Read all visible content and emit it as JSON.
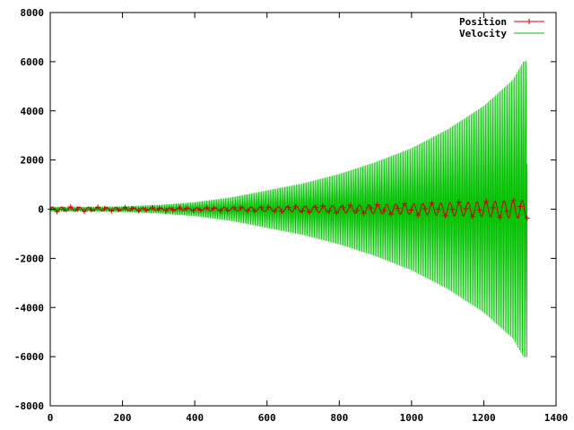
{
  "chart_data": {
    "type": "line",
    "title": "",
    "xlabel": "",
    "ylabel": "",
    "xlim": [
      0,
      1400
    ],
    "ylim": [
      -8000,
      8000
    ],
    "x_ticks": [
      "0",
      "200",
      "400",
      "600",
      "800",
      "1000",
      "1200",
      "1400"
    ],
    "y_ticks": [
      "-8000",
      "-6000",
      "-4000",
      "-2000",
      "0",
      "2000",
      "4000",
      "6000",
      "8000"
    ],
    "grid": false,
    "legend_position": "top-right",
    "x_end": 1320,
    "series": [
      {
        "name": "Position",
        "color": "#cc0000",
        "style": "line-with-plus-markers",
        "envelope": [
          [
            0,
            100
          ],
          [
            100,
            90
          ],
          [
            200,
            70
          ],
          [
            300,
            60
          ],
          [
            400,
            60
          ],
          [
            500,
            80
          ],
          [
            600,
            100
          ],
          [
            700,
            130
          ],
          [
            800,
            160
          ],
          [
            900,
            190
          ],
          [
            1000,
            230
          ],
          [
            1100,
            270
          ],
          [
            1200,
            320
          ],
          [
            1300,
            380
          ],
          [
            1320,
            390
          ]
        ],
        "period": 25
      },
      {
        "name": "Velocity",
        "color": "#00c000",
        "style": "line",
        "envelope": [
          [
            0,
            100
          ],
          [
            100,
            100
          ],
          [
            200,
            120
          ],
          [
            300,
            180
          ],
          [
            400,
            300
          ],
          [
            500,
            500
          ],
          [
            600,
            800
          ],
          [
            700,
            1100
          ],
          [
            800,
            1500
          ],
          [
            900,
            2000
          ],
          [
            1000,
            2600
          ],
          [
            1100,
            3400
          ],
          [
            1200,
            4400
          ],
          [
            1280,
            5500
          ],
          [
            1310,
            6300
          ],
          [
            1320,
            6300
          ]
        ],
        "period": 4
      }
    ]
  }
}
